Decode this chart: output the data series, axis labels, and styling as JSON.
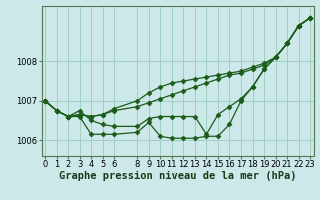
{
  "xlabel": "Graphe pression niveau de la mer (hPa)",
  "background_color": "#cce8e8",
  "grid_color": "#99ccbb",
  "line_color": "#1a5c1a",
  "hours": [
    0,
    1,
    2,
    3,
    4,
    5,
    6,
    8,
    9,
    10,
    11,
    12,
    13,
    14,
    15,
    16,
    17,
    18,
    19,
    20,
    21,
    22,
    23
  ],
  "series": [
    [
      1007.0,
      1006.75,
      1006.6,
      1006.65,
      1006.6,
      1006.65,
      1006.75,
      1006.85,
      1006.95,
      1007.05,
      1007.15,
      1007.25,
      1007.35,
      1007.45,
      1007.55,
      1007.65,
      1007.7,
      1007.8,
      1007.9,
      1008.1,
      1008.45,
      1008.9,
      1009.1
    ],
    [
      1007.0,
      1006.75,
      1006.6,
      1006.65,
      1006.6,
      1006.65,
      1006.8,
      1007.0,
      1007.2,
      1007.35,
      1007.45,
      1007.5,
      1007.55,
      1007.6,
      1007.65,
      1007.7,
      1007.75,
      1007.85,
      1007.95,
      1008.1,
      1008.45,
      1008.9,
      1009.1
    ],
    [
      1007.0,
      1006.75,
      1006.6,
      1006.6,
      1006.15,
      1006.15,
      1006.15,
      1006.2,
      1006.45,
      1006.1,
      1006.05,
      1006.05,
      1006.05,
      1006.1,
      1006.1,
      1006.4,
      1007.0,
      1007.35,
      1007.8,
      1008.1,
      1008.45,
      1008.9,
      1009.1
    ],
    [
      1007.0,
      1006.75,
      1006.6,
      1006.75,
      1006.5,
      1006.4,
      1006.35,
      1006.35,
      1006.55,
      1006.6,
      1006.6,
      1006.6,
      1006.6,
      1006.15,
      1006.65,
      1006.85,
      1007.05,
      1007.35,
      1007.8,
      1008.1,
      1008.45,
      1008.9,
      1009.1
    ]
  ],
  "ylim": [
    1005.6,
    1009.4
  ],
  "yticks": [
    1006,
    1007,
    1008
  ],
  "xticks": [
    0,
    1,
    2,
    3,
    4,
    5,
    6,
    8,
    9,
    10,
    11,
    12,
    13,
    14,
    15,
    16,
    17,
    18,
    19,
    20,
    21,
    22,
    23
  ],
  "marker": "D",
  "markersize": 2.5,
  "linewidth": 0.9,
  "tick_label_fontsize": 6,
  "xlabel_fontsize": 7.5
}
